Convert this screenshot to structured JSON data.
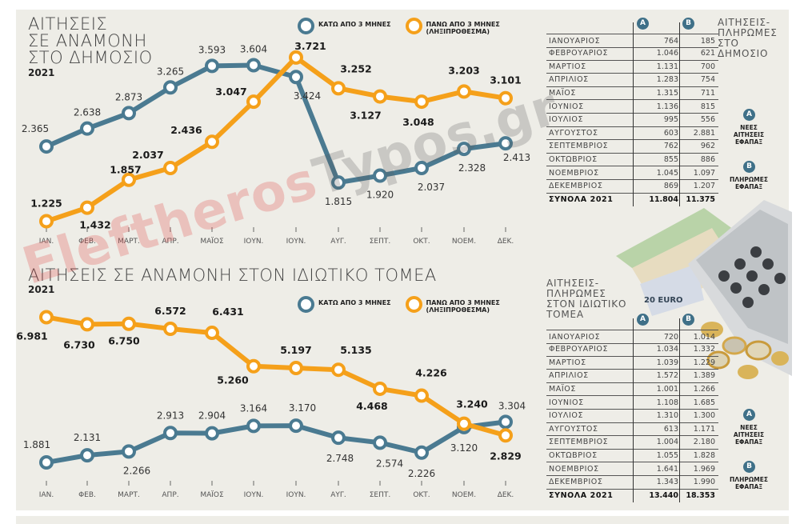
{
  "colors": {
    "blue": "#4a7a91",
    "orange": "#f5a01a",
    "background": "#eeede7"
  },
  "watermark": "ElefitherosTypos.gr",
  "legend": {
    "below": "ΚΑΤΩ ΑΠΟ 3 ΜΗΝΕΣ",
    "above_line1": "ΠΑΝΩ ΑΠΟ 3 ΜΗΝΕΣ",
    "above_line2": "(ΛΗΞΙΠΡΟΘΕΣΜΑ)"
  },
  "chart_data": [
    {
      "type": "line",
      "title": "ΑΙΤΗΣΕΙΣ ΣΕ ΑΝΑΜΟΝΗ ΣΤΟ ΔΗΜΟΣΙΟ",
      "title_lines": [
        "ΑΙΤΗΣΕΙΣ",
        "ΣΕ ΑΝΑΜΟΝΗ",
        "ΣΤΟ ΔΗΜΟΣΙΟ"
      ],
      "subtitle": "2021",
      "categories": [
        "ΙΑΝ.",
        "ΦΕΒ.",
        "ΜΑΡΤ.",
        "ΑΠΡ.",
        "ΜΑΪΟΣ",
        "ΙΟΥΝ.",
        "ΙΟΥΝ.",
        "ΑΥΓ.",
        "ΣΕΠΤ.",
        "ΟΚΤ.",
        "ΝΟΕΜ.",
        "ΔΕΚ."
      ],
      "series": [
        {
          "name": "ΚΑΤΩ ΑΠΟ 3 ΜΗΝΕΣ",
          "color": "#4a7a91",
          "values": [
            2365,
            2638,
            2873,
            3265,
            3593,
            3604,
            3424,
            1815,
            1920,
            2037,
            2328,
            2413
          ],
          "labels": [
            "2.365",
            "2.638",
            "2.873",
            "3.265",
            "3.593",
            "3.604",
            "3.424",
            "1.815",
            "1.920",
            "2.037",
            "2.328",
            "2.413"
          ]
        },
        {
          "name": "ΠΑΝΩ ΑΠΟ 3 ΜΗΝΕΣ (ΛΗΞΙΠΡΟΘΕΣΜΑ)",
          "color": "#f5a01a",
          "values": [
            1225,
            1432,
            1857,
            2037,
            2436,
            3047,
            3721,
            3252,
            3127,
            3048,
            3203,
            3101
          ],
          "labels": [
            "1.225",
            "1.432",
            "1.857",
            "2.037",
            "2.436",
            "3.047",
            "3.721",
            "3.252",
            "3.127",
            "3.048",
            "3.203",
            "3.101"
          ]
        }
      ],
      "grid": false,
      "legend_position": "top"
    },
    {
      "type": "line",
      "title": "ΑΙΤΗΣΕΙΣ ΣΕ ΑΝΑΜΟΝΗ ΣΤΟΝ ΙΔΙΩΤΙΚΟ ΤΟΜΕΑ",
      "subtitle": "2021",
      "categories": [
        "ΙΑΝ.",
        "ΦΕΒ.",
        "ΜΑΡΤ.",
        "ΑΠΡ.",
        "ΜΑΪΟΣ",
        "ΙΟΥΝ.",
        "ΙΟΥΝ.",
        "ΑΥΓ.",
        "ΣΕΠΤ.",
        "ΟΚΤ.",
        "ΝΟΕΜ.",
        "ΔΕΚ."
      ],
      "series": [
        {
          "name": "ΚΑΤΩ ΑΠΟ 3 ΜΗΝΕΣ",
          "color": "#4a7a91",
          "values": [
            1881,
            2131,
            2266,
            2913,
            2904,
            3164,
            3170,
            2748,
            2574,
            2226,
            3120,
            3304
          ],
          "labels": [
            "1.881",
            "2.131",
            "2.266",
            "2.913",
            "2.904",
            "3.164",
            "3.170",
            "2.748",
            "2.574",
            "2.226",
            "3.120",
            "3.304"
          ]
        },
        {
          "name": "ΠΑΝΩ ΑΠΟ 3 ΜΗΝΕΣ (ΛΗΞΙΠΡΟΘΕΣΜΑ)",
          "color": "#f5a01a",
          "values": [
            6981,
            6730,
            6750,
            6572,
            6431,
            5260,
            5197,
            5135,
            4468,
            4226,
            3240,
            2829
          ],
          "labels": [
            "6.981",
            "6.730",
            "6.750",
            "6.572",
            "6.431",
            "5.260",
            "5.197",
            "5.135",
            "4.468",
            "4.226",
            "3.240",
            "2.829"
          ]
        }
      ],
      "grid": false,
      "legend_position": "top"
    },
    {
      "type": "table",
      "title_lines": [
        "ΑΙΤΗΣΕΙΣ-",
        "ΠΛΗΡΩΜΕΣ",
        "ΣΤΟ",
        "ΔΗΜΟΣΙΟ"
      ],
      "columns": [
        "A",
        "B"
      ],
      "rows": [
        [
          "ΙΑΝΟΥΑΡΙΟΣ",
          "764",
          "185"
        ],
        [
          "ΦΕΒΡΟΥΑΡΙΟΣ",
          "1.046",
          "621"
        ],
        [
          "ΜΑΡΤΙΟΣ",
          "1.131",
          "700"
        ],
        [
          "ΑΠΡΙΛΙΟΣ",
          "1.283",
          "754"
        ],
        [
          "ΜΑΪΟΣ",
          "1.315",
          "711"
        ],
        [
          "ΙΟΥΝΙΟΣ",
          "1.136",
          "815"
        ],
        [
          "ΙΟΥΛΙΟΣ",
          "995",
          "556"
        ],
        [
          "ΑΥΓΟΥΣΤΟΣ",
          "603",
          "2.881"
        ],
        [
          "ΣΕΠΤΕΜΒΡΙΟΣ",
          "762",
          "962"
        ],
        [
          "ΟΚΤΩΒΡΙΟΣ",
          "855",
          "886"
        ],
        [
          "ΝΟΕΜΒΡΙΟΣ",
          "1.045",
          "1.097"
        ],
        [
          "ΔΕΚΕΜΒΡΙΟΣ",
          "869",
          "1.207"
        ]
      ],
      "total": [
        "ΣΥΝΟΛΑ 2021",
        "11.804",
        "11.375"
      ]
    },
    {
      "type": "table",
      "title_lines": [
        "ΑΙΤΗΣΕΙΣ-",
        "ΠΛΗΡΩΜΕΣ",
        "ΣΤΟΝ ΙΔΙΩΤΙΚΟ",
        "ΤΟΜΕΑ"
      ],
      "columns": [
        "A",
        "B"
      ],
      "rows": [
        [
          "ΙΑΝΟΥΑΡΙΟΣ",
          "720",
          "1.014"
        ],
        [
          "ΦΕΒΡΟΥΑΡΙΟΣ",
          "1.034",
          "1.332"
        ],
        [
          "ΜΑΡΤΙΟΣ",
          "1.039",
          "1.229"
        ],
        [
          "ΑΠΡΙΛΙΟΣ",
          "1.572",
          "1.389"
        ],
        [
          "ΜΑΪΟΣ",
          "1.001",
          "1.266"
        ],
        [
          "ΙΟΥΝΙΟΣ",
          "1.108",
          "1.685"
        ],
        [
          "ΙΟΥΛΙΟΣ",
          "1.310",
          "1.300"
        ],
        [
          "ΑΥΓΟΥΣΤΟΣ",
          "613",
          "1.171"
        ],
        [
          "ΣΕΠΤΕΜΒΡΙΟΣ",
          "1.004",
          "2.180"
        ],
        [
          "ΟΚΤΩΒΡΙΟΣ",
          "1.055",
          "1.828"
        ],
        [
          "ΝΟΕΜΒΡΙΟΣ",
          "1.641",
          "1.969"
        ],
        [
          "ΔΕΚΕΜΒΡΙΟΣ",
          "1.343",
          "1.990"
        ]
      ],
      "total": [
        "ΣΥΝΟΛΑ 2021",
        "13.440",
        "18.353"
      ]
    }
  ],
  "notes": {
    "a_badge": "A",
    "b_badge": "B",
    "a_text": [
      "ΝΕΕΣ",
      "ΑΙΤΗΣΕΙΣ",
      "ΕΦΑΠΑΞ"
    ],
    "b_text": [
      "ΠΛΗΡΩΜΕΣ",
      "ΕΦΑΠΑΞ"
    ]
  }
}
